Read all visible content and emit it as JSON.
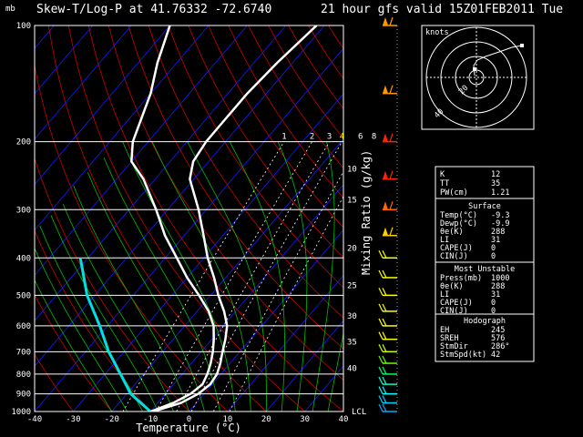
{
  "header": {
    "unit_label": "mb",
    "title": "Skew-T/Log-P at 41.76332     -72.6740",
    "valid": "21 hour gfs valid   15Z01FEB2011   Tue"
  },
  "axes": {
    "xlabel": "Temperature (°C)",
    "mixing_ratio_label": "Mixing Ratio (g/kg)",
    "pressure_ticks": [
      "100",
      "200",
      "300",
      "400",
      "500",
      "600",
      "700",
      "800",
      "900",
      "1000"
    ],
    "temp_ticks": [
      "-40",
      "-30",
      "-20",
      "-10",
      "0",
      "10",
      "20",
      "30",
      "40"
    ],
    "mixing_ratio_ticks": [
      "1",
      "2",
      "3",
      "4",
      "6",
      "8"
    ],
    "height_ticks": [
      "10",
      "15",
      "20",
      "25",
      "30",
      "35",
      "40"
    ],
    "lcl_label": "LCL"
  },
  "hodograph": {
    "label": "knots",
    "ring_labels": [
      "20",
      "40"
    ]
  },
  "indices": {
    "K": {
      "label": "K",
      "value": "12"
    },
    "TT": {
      "label": "TT",
      "value": "35"
    },
    "PW": {
      "label": "PW(cm)",
      "value": "1.21"
    },
    "surface_header": "Surface",
    "surface": [
      {
        "label": "Temp(°C)",
        "value": "-9.3"
      },
      {
        "label": "Dewp(°C)",
        "value": "-9.9"
      },
      {
        "label": "θe(K)",
        "value": "288"
      },
      {
        "label": "LI",
        "value": "31"
      },
      {
        "label": "CAPE(J)",
        "value": "0"
      },
      {
        "label": "CIN(J)",
        "value": "0"
      }
    ],
    "unstable_header": "Most Unstable",
    "unstable": [
      {
        "label": "Press(mb)",
        "value": "1000"
      },
      {
        "label": "θe(K)",
        "value": "288"
      },
      {
        "label": "LI",
        "value": "31"
      },
      {
        "label": "CAPE(J)",
        "value": "0"
      },
      {
        "label": "CIN(J)",
        "value": "0"
      }
    ],
    "hodo_header": "Hodograph",
    "hodo": [
      {
        "label": "EH",
        "value": "245"
      },
      {
        "label": "SREH",
        "value": "576"
      },
      {
        "label": "StmDir",
        "value": "286°"
      },
      {
        "label": "StmSpd(kt)",
        "value": "42"
      }
    ]
  },
  "colors": {
    "isobar": "#ffffff",
    "isotherm": "#1a1aff",
    "dry_adiabat": "#cc0000",
    "moist_adiabat": "#00bb00",
    "mixing_ratio": "#ffffff",
    "temperature_profile": "#ffffff",
    "dewpoint_profile": "#ffffff",
    "wetbulb_profile": "#00e0e0",
    "mixing_ratio_label_color": "#ffff00"
  },
  "chart_data": {
    "type": "skew-t",
    "xlabel": "Temperature (°C)",
    "ylabel": "mb",
    "xlim": [
      -40,
      40
    ],
    "ylim": [
      1000,
      100
    ],
    "pressure_levels": [
      100,
      200,
      300,
      400,
      500,
      600,
      700,
      800,
      900,
      1000
    ],
    "temperature_profile": [
      {
        "p": 1000,
        "t": -9.3
      },
      {
        "p": 950,
        "t": -4
      },
      {
        "p": 900,
        "t": -1.5
      },
      {
        "p": 850,
        "t": -0.5
      },
      {
        "p": 800,
        "t": -1
      },
      {
        "p": 750,
        "t": -2.5
      },
      {
        "p": 700,
        "t": -4.5
      },
      {
        "p": 650,
        "t": -6.5
      },
      {
        "p": 600,
        "t": -9
      },
      {
        "p": 550,
        "t": -13
      },
      {
        "p": 500,
        "t": -18
      },
      {
        "p": 450,
        "t": -23
      },
      {
        "p": 400,
        "t": -29
      },
      {
        "p": 350,
        "t": -35
      },
      {
        "p": 300,
        "t": -42
      },
      {
        "p": 250,
        "t": -51
      },
      {
        "p": 225,
        "t": -54
      },
      {
        "p": 200,
        "t": -55
      },
      {
        "p": 175,
        "t": -55
      },
      {
        "p": 150,
        "t": -55
      },
      {
        "p": 125,
        "t": -54
      },
      {
        "p": 100,
        "t": -52
      }
    ],
    "dewpoint_profile": [
      {
        "p": 1000,
        "t": -9.9
      },
      {
        "p": 950,
        "t": -6
      },
      {
        "p": 900,
        "t": -3.5
      },
      {
        "p": 850,
        "t": -2.5
      },
      {
        "p": 800,
        "t": -3.5
      },
      {
        "p": 750,
        "t": -5
      },
      {
        "p": 700,
        "t": -7
      },
      {
        "p": 650,
        "t": -9.5
      },
      {
        "p": 600,
        "t": -12.5
      },
      {
        "p": 550,
        "t": -17
      },
      {
        "p": 500,
        "t": -23
      },
      {
        "p": 450,
        "t": -30
      },
      {
        "p": 400,
        "t": -37
      },
      {
        "p": 350,
        "t": -45
      },
      {
        "p": 300,
        "t": -53
      },
      {
        "p": 250,
        "t": -63
      },
      {
        "p": 225,
        "t": -70
      },
      {
        "p": 200,
        "t": -74
      },
      {
        "p": 150,
        "t": -80
      },
      {
        "p": 125,
        "t": -85
      },
      {
        "p": 100,
        "t": -90
      }
    ],
    "wetbulb_profile": [
      {
        "p": 1000,
        "t": -10
      },
      {
        "p": 900,
        "t": -19
      },
      {
        "p": 800,
        "t": -26
      },
      {
        "p": 700,
        "t": -34
      },
      {
        "p": 600,
        "t": -42
      },
      {
        "p": 500,
        "t": -52
      },
      {
        "p": 400,
        "t": -62
      }
    ]
  }
}
